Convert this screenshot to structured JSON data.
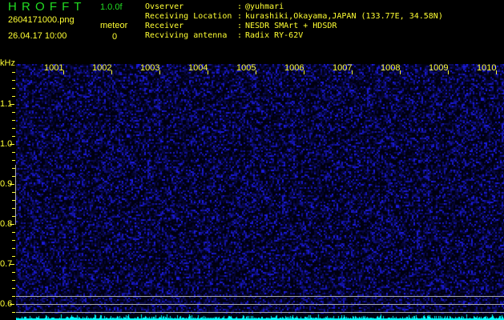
{
  "header": {
    "app_title": "H R O F F T",
    "version": "1.0.0f",
    "filename": "2604171000.png",
    "datetime": "26.04.17 10:00",
    "meteor_label": "meteor",
    "meteor_count": "0"
  },
  "info": [
    {
      "label": "Ovserver",
      "value": "@yuhmari"
    },
    {
      "label": "Receiving Location",
      "value": "kurashiki,Okayama,JAPAN (133.77E, 34.58N)"
    },
    {
      "label": "Receiver",
      "value": "NESDR SMArt + HDSDR"
    },
    {
      "label": "Recviving antenna",
      "value": "Radix RY-62V"
    }
  ],
  "spectrogram": {
    "y_unit": "kHz",
    "y_labels": [
      "1.1",
      "1.0",
      "0.9",
      "0.8",
      "0.7",
      "0.6"
    ],
    "time_labels": [
      "1001",
      "1002",
      "1003",
      "1004",
      "1005",
      "1006",
      "1007",
      "1008",
      "1009",
      "1010"
    ],
    "colors": {
      "background": "#000000",
      "noise": "#2020c0",
      "baseline": "#00ffff",
      "text": "#ffff33",
      "title": "#22dd22"
    }
  }
}
